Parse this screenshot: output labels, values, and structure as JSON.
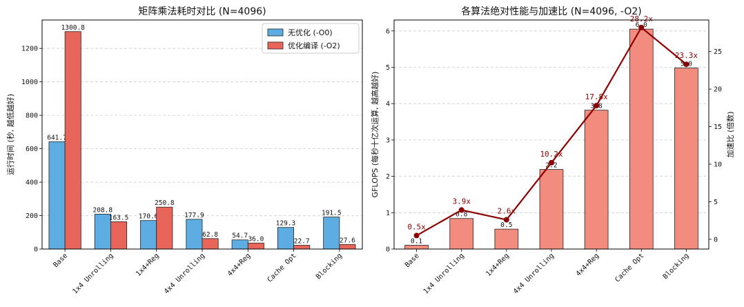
{
  "chart_data": [
    {
      "type": "bar",
      "title": "矩阵乘法耗时对比 (N=4096)",
      "xlabel": "",
      "ylabel": "运行时间 (秒, 越低越好)",
      "categories": [
        "Base",
        "1x4 Unrolling",
        "1x4+Reg",
        "4x4 Unrolling",
        "4x4+Reg",
        "Cache Opt",
        "Blocking"
      ],
      "ylim": [
        0,
        1370
      ],
      "yticks": [
        0,
        200,
        400,
        600,
        800,
        1000,
        1200
      ],
      "grid": true,
      "legend_position": "top-right",
      "series": [
        {
          "name": "无优化 (-O0)",
          "color": "#5dade2",
          "values": [
            641.7,
            208.8,
            170.6,
            177.9,
            54.7,
            129.3,
            191.5
          ],
          "labels": [
            "641.7",
            "208.8",
            "170.6",
            "177.9",
            "54.7",
            "129.3",
            "191.5"
          ]
        },
        {
          "name": "优化编译 (-O2)",
          "color": "#e8655a",
          "values": [
            1300.8,
            163.5,
            250.8,
            62.8,
            36.0,
            22.7,
            27.6
          ],
          "labels": [
            "1300.8",
            "163.5",
            "250.8",
            "62.8",
            "36.0",
            "22.7",
            "27.6"
          ]
        }
      ]
    },
    {
      "type": "bar",
      "title": "各算法绝对性能与加速比 (N=4096, -O2)",
      "xlabel": "",
      "ylabel": "GFLOPS (每秒十亿次运算, 越高越好)",
      "y2label": "加速比 (倍数)",
      "categories": [
        "Base",
        "1x4 Unrolling",
        "1x4+Reg",
        "4x4 Unrolling",
        "4x4+Reg",
        "Cache Opt",
        "Blocking"
      ],
      "ylim": [
        0,
        6.3
      ],
      "yticks": [
        0,
        1,
        2,
        3,
        4,
        5,
        6
      ],
      "y2lim": [
        -1.3,
        29.2
      ],
      "y2ticks": [
        0,
        5,
        10,
        15,
        20,
        25
      ],
      "grid": true,
      "bars": {
        "name": "GFLOPS",
        "color": "#f28c7e",
        "values": [
          0.106,
          0.84,
          0.548,
          2.19,
          3.82,
          6.05,
          4.98
        ],
        "labels": [
          "0.1",
          "0.8",
          "0.5",
          "2.2",
          "3.8",
          "6.0",
          "5.0"
        ]
      },
      "line": {
        "name": "加速比",
        "color": "#8b0000",
        "values": [
          0.5,
          3.9,
          2.6,
          10.2,
          17.8,
          28.2,
          23.3
        ],
        "labels": [
          "0.5x",
          "3.9x",
          "2.6x",
          "10.2x",
          "17.8x",
          "28.2x",
          "23.3x"
        ]
      }
    }
  ]
}
